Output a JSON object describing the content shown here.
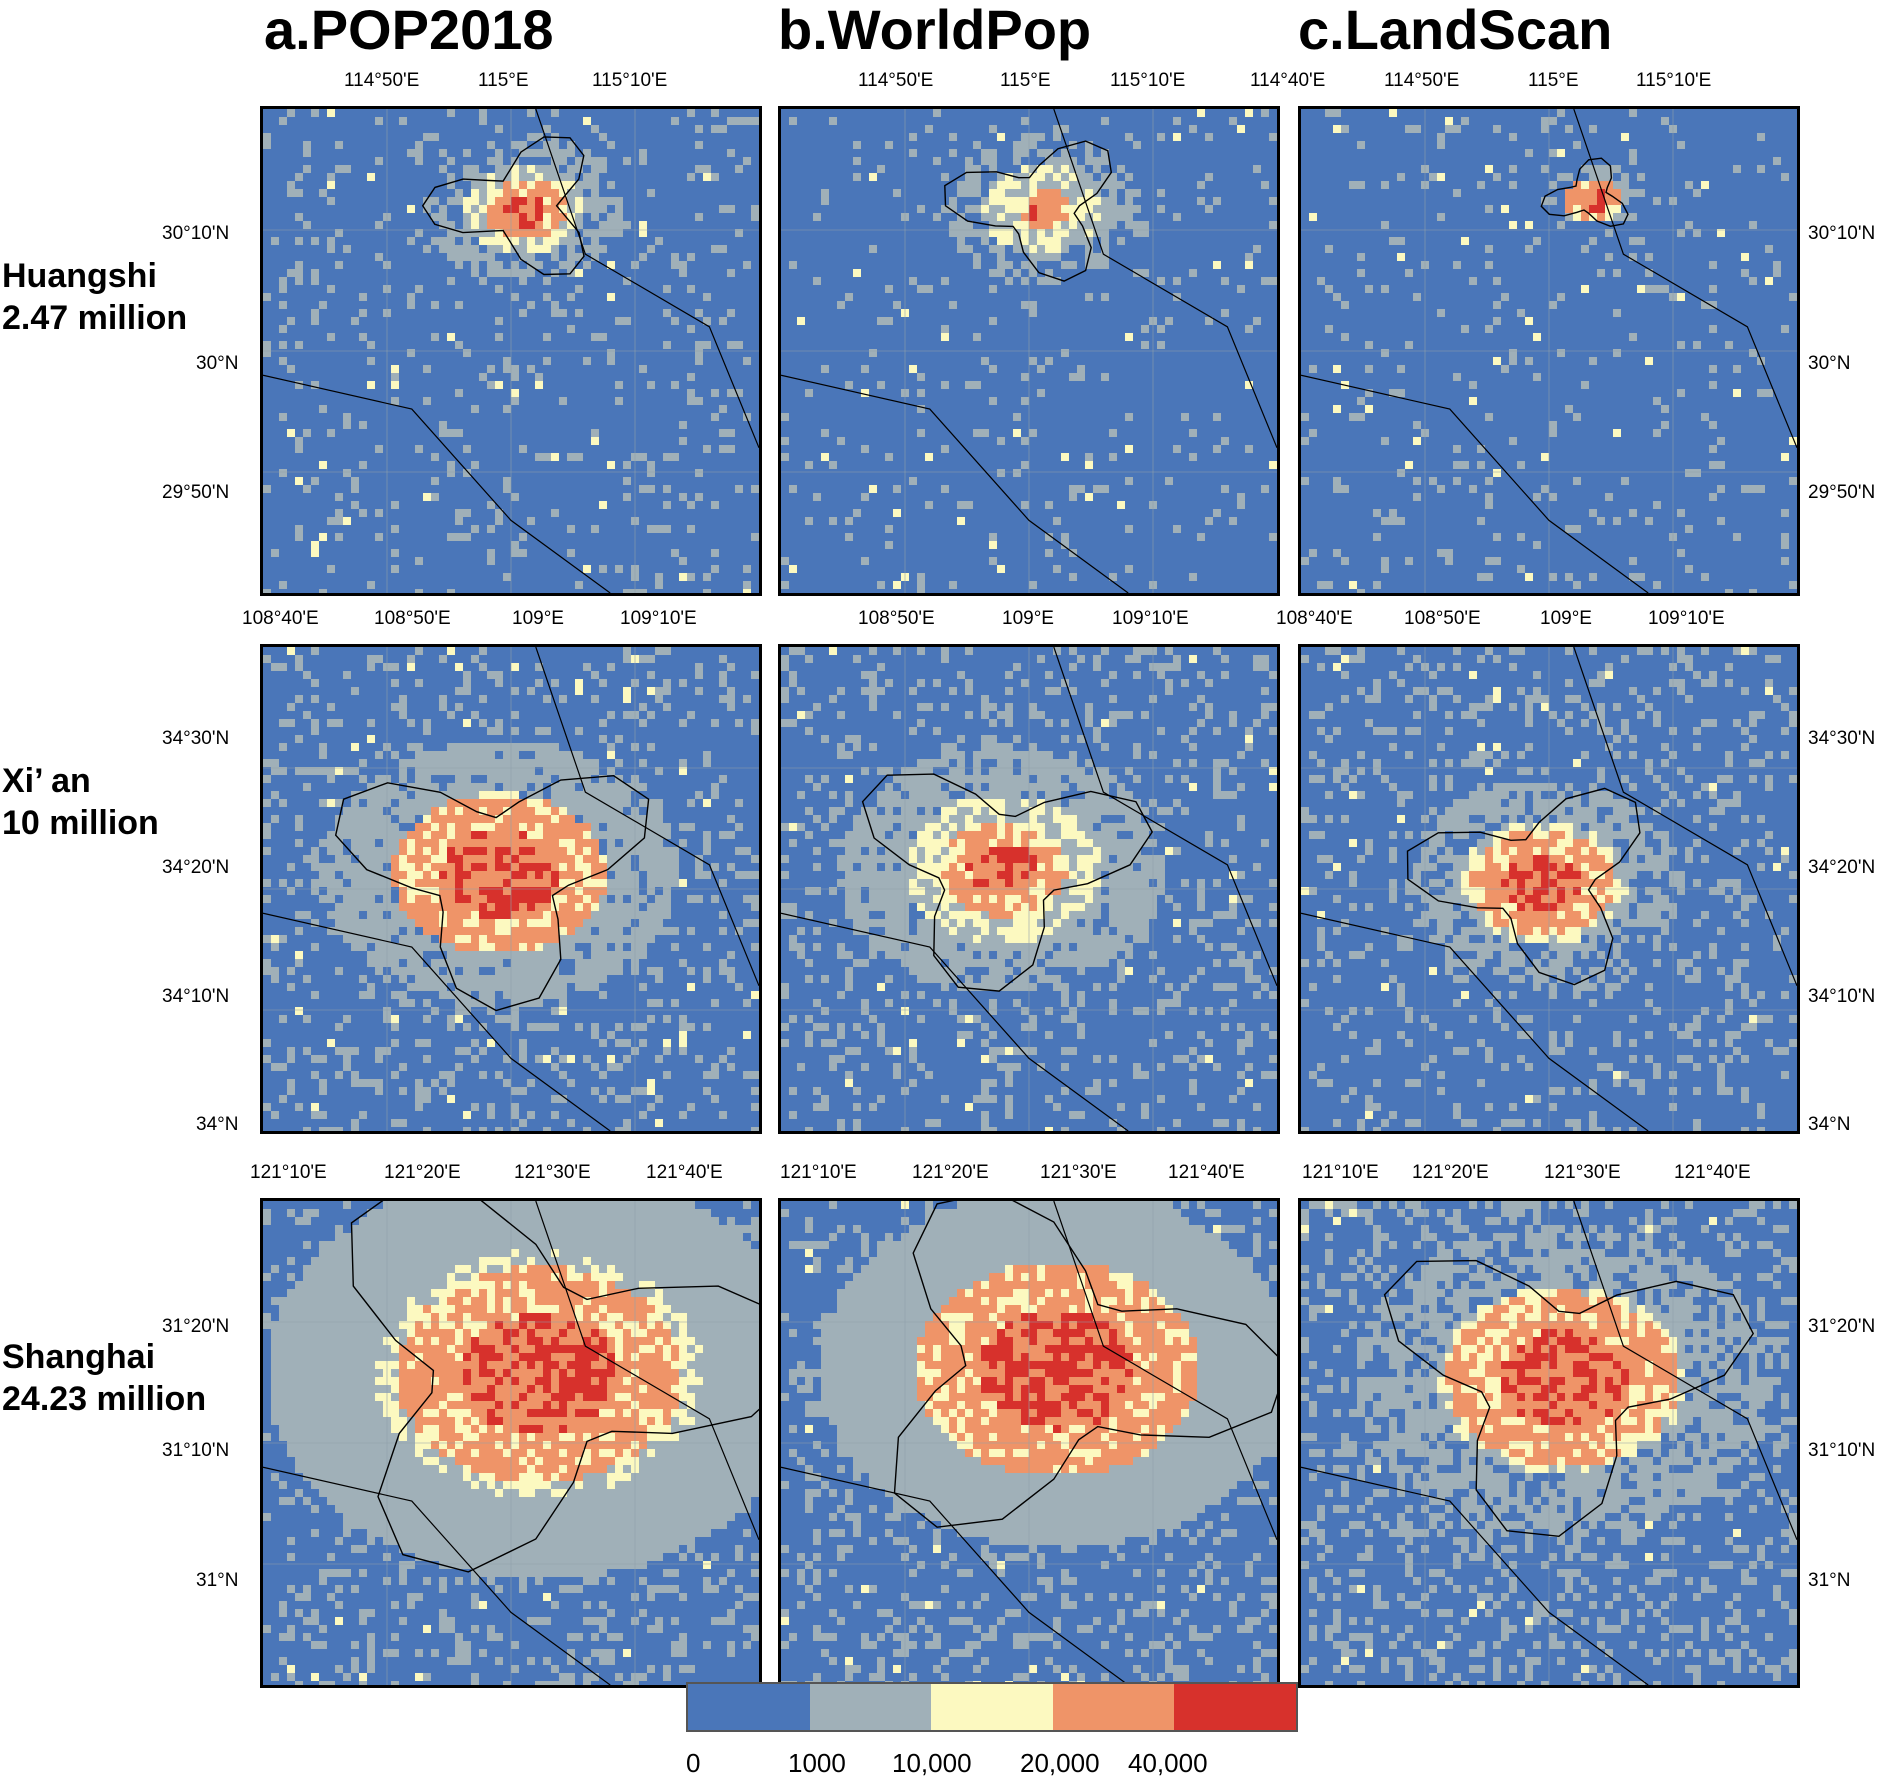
{
  "columns": [
    {
      "title": "a.POP2018"
    },
    {
      "title": "b.WorldPop"
    },
    {
      "title": "c.LandScan"
    }
  ],
  "rows": [
    {
      "city": "Huangshi",
      "population": "2.47 million",
      "top_ticks": [
        "114°50'E",
        "115°E",
        "115°10'E"
      ],
      "top_ticks_extra": [
        "114°40'E"
      ],
      "lat_ticks": [
        "30°10'N",
        "30°N",
        "29°50'N"
      ]
    },
    {
      "city": "Xi’ an",
      "population": "10 million",
      "top_ticks": [
        "108°40'E",
        "108°50'E",
        "109°E",
        "109°10'E"
      ],
      "lat_ticks": [
        "34°30'N",
        "34°20'N",
        "34°10'N",
        "34°N"
      ]
    },
    {
      "city": "Shanghai",
      "population": "24.23 million",
      "top_ticks": [
        "121°10'E",
        "121°20'E",
        "121°30'E",
        "121°40'E"
      ],
      "lat_ticks": [
        "31°20'N",
        "31°10'N",
        "31°N"
      ]
    }
  ],
  "legend": {
    "classes": [
      {
        "color": "#4a76b9"
      },
      {
        "color": "#a0b0b8"
      },
      {
        "color": "#fcf9c0"
      },
      {
        "color": "#ef9468"
      },
      {
        "color": "#d7312c"
      }
    ],
    "labels": [
      "0",
      "1000",
      "10,000",
      "20,000",
      "40,000"
    ]
  }
}
